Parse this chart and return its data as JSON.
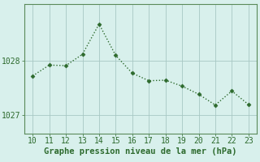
{
  "x": [
    10,
    11,
    12,
    13,
    14,
    15,
    16,
    17,
    18,
    19,
    20,
    21,
    22,
    23
  ],
  "y": [
    1027.72,
    1027.92,
    1027.91,
    1028.12,
    1028.68,
    1028.1,
    1027.77,
    1027.63,
    1027.64,
    1027.53,
    1027.38,
    1027.18,
    1027.44,
    1027.19
  ],
  "line_color": "#2d6a2d",
  "marker": "D",
  "marker_size": 2.5,
  "bg_color": "#d8f0ec",
  "grid_color": "#a8c8c4",
  "xlabel": "Graphe pression niveau de la mer (hPa)",
  "xlabel_color": "#2d6a2d",
  "xlabel_fontsize": 7.5,
  "tick_color": "#2d6a2d",
  "tick_fontsize": 7.0,
  "yticks": [
    1027,
    1028
  ],
  "xlim": [
    9.5,
    23.5
  ],
  "ylim": [
    1026.65,
    1029.05
  ],
  "linewidth": 1.0
}
